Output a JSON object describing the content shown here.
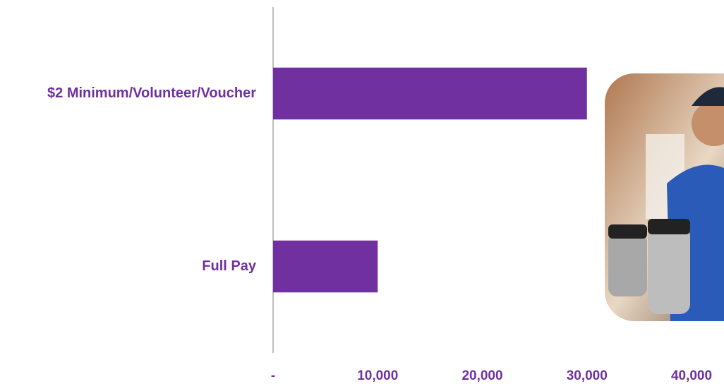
{
  "chart_data": {
    "type": "bar",
    "orientation": "horizontal",
    "categories": [
      "$2 Minimum/Volunteer/Voucher",
      "Full Pay"
    ],
    "values": [
      30000,
      10000
    ],
    "color": "#7030a0",
    "xlim": [
      0,
      40000
    ],
    "xticks": [
      {
        "value": 0,
        "label": "-"
      },
      {
        "value": 10000,
        "label": "10,000"
      },
      {
        "value": 20000,
        "label": "20,000"
      },
      {
        "value": 30000,
        "label": "30,000"
      },
      {
        "value": 40000,
        "label": "40,000"
      }
    ],
    "grid": false
  }
}
